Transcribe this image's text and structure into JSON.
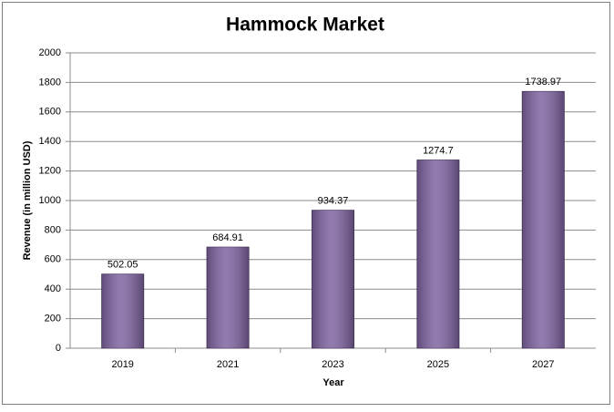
{
  "chart_data": {
    "type": "bar",
    "title": "Hammock Market",
    "x_label": "Year",
    "y_label": "Revenue (in million USD)",
    "categories": [
      "2019",
      "2021",
      "2023",
      "2025",
      "2027"
    ],
    "values": [
      502.05,
      684.91,
      934.37,
      1274.7,
      1738.97
    ],
    "color": "#8064a2",
    "ylim": [
      0,
      2000
    ],
    "yticks": [
      0,
      200,
      400,
      600,
      800,
      1000,
      1200,
      1400,
      1600,
      1800,
      2000
    ],
    "grid": true
  }
}
